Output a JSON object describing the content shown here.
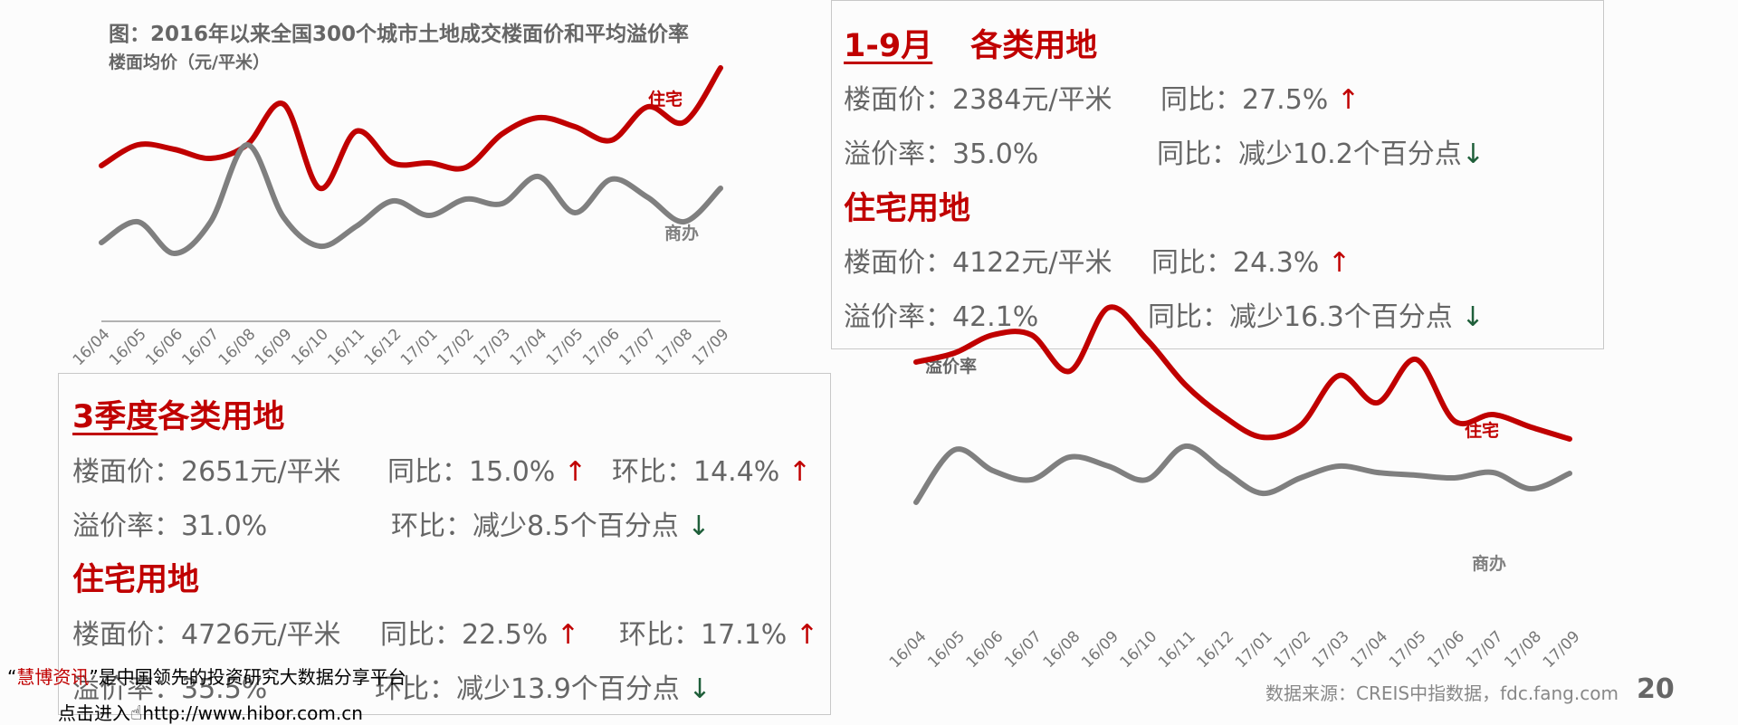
{
  "chart_data": [
    {
      "type": "line",
      "title": "图：2016年以来全国300个城市土地成交楼面价和平均溢价率",
      "ylabel": "楼面均价（元/平米）",
      "categories": [
        "16/04",
        "16/05",
        "16/06",
        "16/07",
        "16/08",
        "16/09",
        "16/10",
        "16/11",
        "16/12",
        "17/01",
        "17/02",
        "17/03",
        "17/04",
        "17/05",
        "17/06",
        "17/07",
        "17/08",
        "17/09"
      ],
      "series": [
        {
          "name": "住宅",
          "color": "#c00000",
          "values": [
            183,
            160,
            165,
            175,
            160,
            115,
            208,
            145,
            180,
            180,
            185,
            148,
            130,
            140,
            155,
            118,
            135,
            75
          ]
        },
        {
          "name": "商办",
          "color": "#7f7f7f",
          "values": [
            268,
            245,
            280,
            245,
            160,
            240,
            272,
            250,
            222,
            238,
            220,
            225,
            195,
            235,
            198,
            218,
            245,
            208
          ]
        }
      ]
    },
    {
      "type": "line",
      "title": "",
      "ylabel": "溢价率",
      "categories": [
        "16/04",
        "16/05",
        "16/06",
        "16/07",
        "16/08",
        "16/09",
        "16/10",
        "16/11",
        "16/12",
        "17/01",
        "17/02",
        "17/03",
        "17/04",
        "17/05",
        "17/06",
        "17/07",
        "17/08",
        "17/09"
      ],
      "series": [
        {
          "name": "住宅",
          "color": "#c00000",
          "values": [
            400,
            390,
            370,
            370,
            410,
            340,
            375,
            425,
            460,
            483,
            470,
            415,
            445,
            397,
            465,
            458,
            472,
            485
          ]
        },
        {
          "name": "商办",
          "color": "#7f7f7f",
          "values": [
            555,
            497,
            520,
            530,
            505,
            515,
            530,
            493,
            520,
            545,
            528,
            515,
            522,
            525,
            528,
            522,
            540,
            523
          ]
        }
      ]
    }
  ],
  "box_top_right": {
    "header_a": "1-9月",
    "header_b": "各类用地",
    "l1a": "楼面价：2384元/平米",
    "l1b": "同比：27.5%",
    "l1b_arrow": "↑",
    "l2a": "溢价率：35.0%",
    "l2b": "同比：减少10.2个百分点",
    "l2b_arrow": "↓",
    "header2": "住宅用地",
    "l3a": "楼面价：4122元/平米",
    "l3b": "同比：24.3%",
    "l3b_arrow": "↑",
    "l4a": "溢价率：42.1%",
    "l4b": "同比：减少16.3个百分点",
    "l4b_arrow": "↓"
  },
  "box_bottom_left": {
    "header_a": "3季度",
    "header_b": "各类用地",
    "l1a": "楼面价：2651元/平米",
    "l1b": "同比：15.0%",
    "l1b_arrow": "↑",
    "l1c": "环比：14.4%",
    "l1c_arrow": "↑",
    "l2a": "溢价率：31.0%",
    "l2b": "环比：减少8.5个百分点",
    "l2b_arrow": "↓",
    "header2": "住宅用地",
    "l3a": "楼面价：4726元/平米",
    "l3b": "同比：22.5%",
    "l3b_arrow": "↑",
    "l3c": "环比：17.1%",
    "l3c_arrow": "↑",
    "l4a": "溢价率：35.5%",
    "l4b": "环比：减少13.9个百分点",
    "l4b_arrow": "↓"
  },
  "source": "数据来源：CREIS中指数据，fdc.fang.com",
  "page_number": "20",
  "watermark": {
    "q1": "“",
    "brand": "慧博资讯",
    "rest": "”是中国领先的投资研究大数据分享平台",
    "line2": "点击进入",
    "url": "http://www.hibor.com.cn"
  }
}
